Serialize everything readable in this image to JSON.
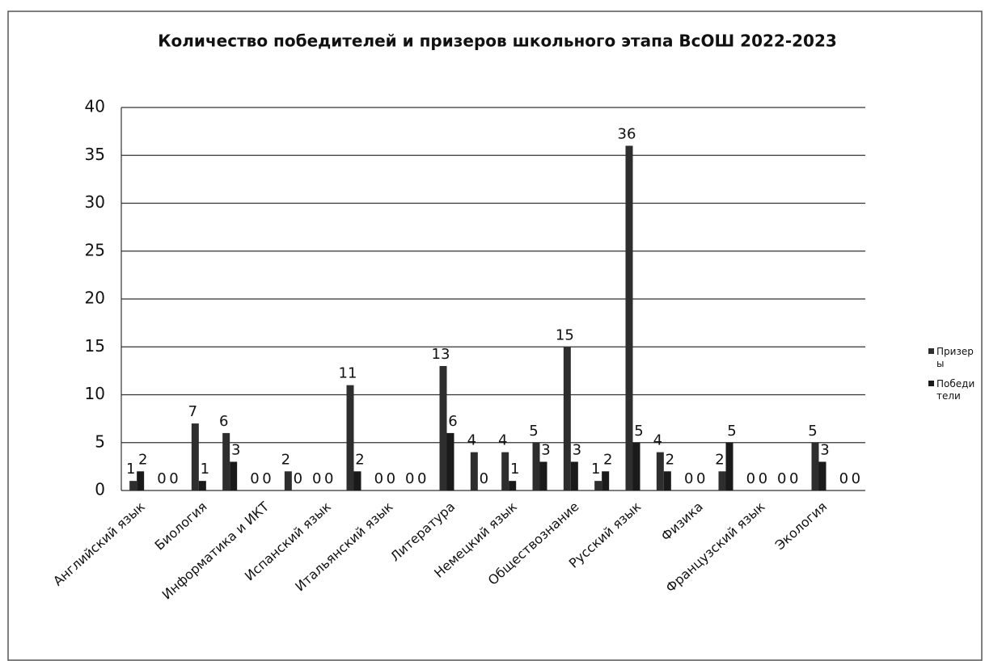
{
  "chart_data": {
    "type": "bar",
    "title": "Количество победителей и призеров школьного этапа  ВсОШ 2022-2023",
    "categories": [
      "Английский язык",
      null,
      "Биология",
      null,
      "Информатика и ИКТ",
      null,
      "Испанский язык",
      null,
      "Итальянский язык",
      null,
      "Литература",
      null,
      "Немецкий язык",
      null,
      "Обществознание",
      null,
      "Русский язык",
      null,
      "Физика",
      null,
      "Французский язык",
      null,
      "Экология",
      null
    ],
    "series": [
      {
        "name": "Призеры",
        "color": "#2e2e2e",
        "values": [
          1,
          0,
          7,
          6,
          0,
          2,
          0,
          11,
          0,
          0,
          13,
          4,
          4,
          5,
          15,
          1,
          36,
          4,
          0,
          2,
          0,
          0,
          5,
          0
        ]
      },
      {
        "name": "Победители",
        "color": "#1a1a1a",
        "values": [
          2,
          0,
          1,
          3,
          0,
          0,
          0,
          2,
          0,
          0,
          6,
          0,
          1,
          3,
          3,
          2,
          5,
          2,
          0,
          5,
          0,
          0,
          3,
          0
        ]
      }
    ],
    "ylim": [
      0,
      40
    ],
    "yticks": [
      0,
      5,
      10,
      15,
      20,
      25,
      30,
      35,
      40
    ],
    "grid": true,
    "data_labels": true,
    "legend": "right"
  }
}
